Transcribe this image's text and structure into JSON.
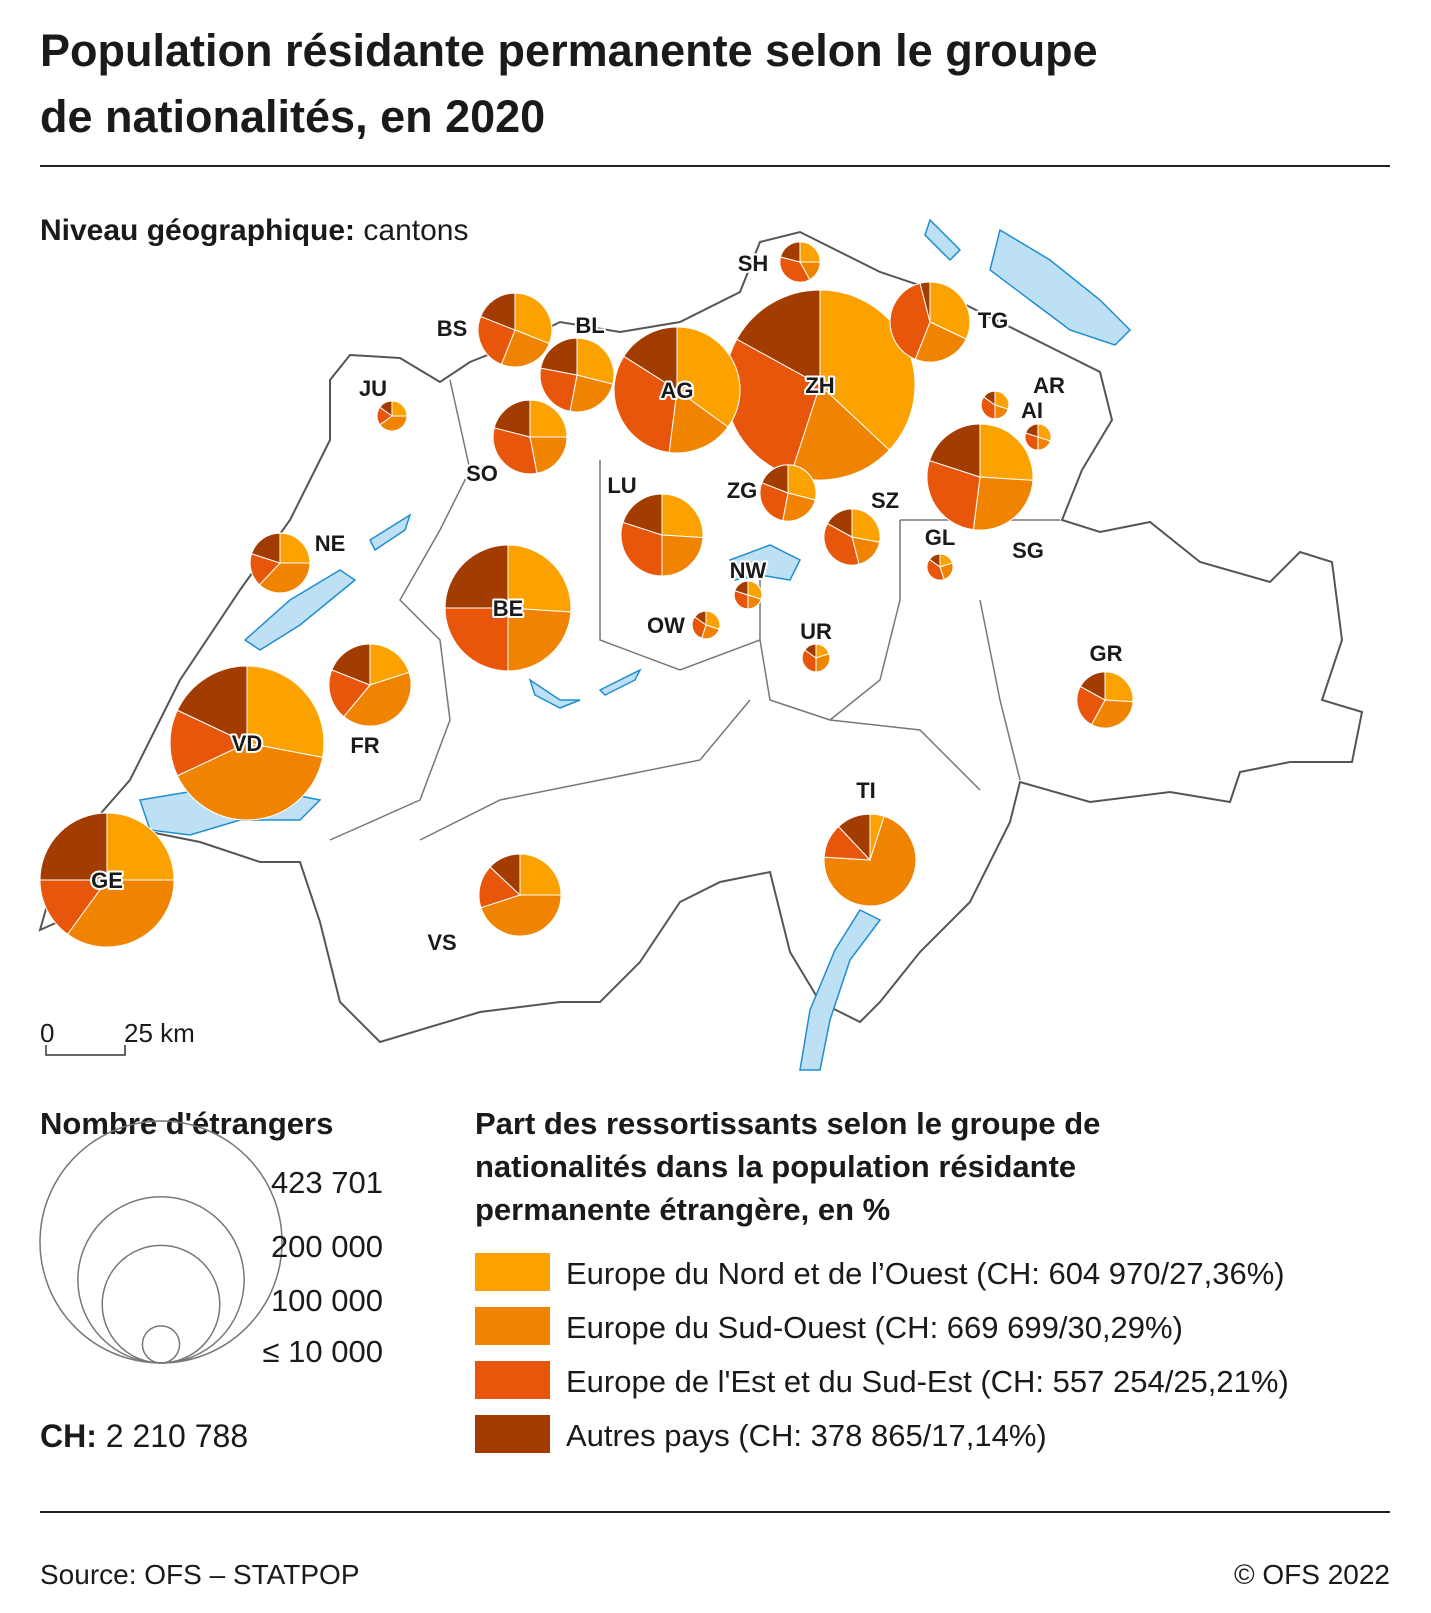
{
  "title": "Population résidante permanente selon le groupe de nationalités, en 2020",
  "geo_level": {
    "label": "Niveau géographique:",
    "value": "cantons"
  },
  "chart_data": {
    "type": "pie-map",
    "groups": [
      {
        "name": "Europe du Nord et de l’Ouest (CH: 604 970/27,36%)",
        "color": "#fba200"
      },
      {
        "name": "Europe du Sud-Ouest (CH: 669 699/30,29%)",
        "color": "#f08300"
      },
      {
        "name": "Europe de l'Est et du Sud-Est (CH: 557 254/25,21%)",
        "color": "#e8560c"
      },
      {
        "name": "Autres pays (CH: 378 865/17,14%)",
        "color": "#a33c00"
      }
    ],
    "color_legend_title": "Part des ressortissants selon le groupe de nationalités dans la population résidante permanente étrangère, en %",
    "cantons": [
      {
        "label": "ZH",
        "total": 423701,
        "values": [
          37,
          18,
          28,
          17
        ]
      },
      {
        "label": "GE",
        "total": 211000,
        "values": [
          25,
          35,
          15,
          25
        ]
      },
      {
        "label": "VD",
        "total": 278000,
        "values": [
          28,
          40,
          14,
          18
        ]
      },
      {
        "label": "BE",
        "total": 186000,
        "values": [
          26,
          24,
          25,
          25
        ]
      },
      {
        "label": "AG",
        "total": 186000,
        "values": [
          35,
          17,
          32,
          16
        ]
      },
      {
        "label": "SG",
        "total": 132000,
        "values": [
          26,
          26,
          28,
          20
        ]
      },
      {
        "label": "TI",
        "total": 99000,
        "values": [
          5,
          71,
          12,
          12
        ]
      },
      {
        "label": "LU",
        "total": 79000,
        "values": [
          26,
          24,
          30,
          20
        ]
      },
      {
        "label": "FR",
        "total": 79000,
        "values": [
          20,
          41,
          20,
          19
        ]
      },
      {
        "label": "VS",
        "total": 79000,
        "values": [
          25,
          45,
          17,
          13
        ]
      },
      {
        "label": "BS",
        "total": 64000,
        "values": [
          31,
          25,
          25,
          19
        ]
      },
      {
        "label": "BL",
        "total": 64000,
        "values": [
          29,
          24,
          25,
          22
        ]
      },
      {
        "label": "SO",
        "total": 64000,
        "values": [
          25,
          22,
          32,
          21
        ]
      },
      {
        "label": "TG",
        "total": 75000,
        "values": [
          32,
          24,
          40,
          4
        ]
      },
      {
        "label": "NE",
        "total": 42000,
        "values": [
          25,
          37,
          18,
          20
        ]
      },
      {
        "label": "GR",
        "total": 37000,
        "values": [
          26,
          32,
          25,
          17
        ]
      },
      {
        "label": "ZG",
        "total": 37000,
        "values": [
          29,
          24,
          28,
          19
        ]
      },
      {
        "label": "SZ",
        "total": 37000,
        "values": [
          28,
          18,
          37,
          17
        ]
      },
      {
        "label": "SH",
        "total": 19000,
        "values": [
          25,
          17,
          37,
          21
        ]
      },
      {
        "label": "JU",
        "total": 10500,
        "values": [
          25,
          40,
          20,
          15
        ]
      },
      {
        "label": "AR",
        "total": 9000,
        "values": [
          30,
          20,
          35,
          15
        ]
      },
      {
        "label": "AI",
        "total": 8000,
        "values": [
          30,
          20,
          30,
          20
        ]
      },
      {
        "label": "GL",
        "total": 8000,
        "values": [
          20,
          25,
          40,
          15
        ]
      },
      {
        "label": "NW",
        "total": 9000,
        "values": [
          30,
          20,
          30,
          20
        ]
      },
      {
        "label": "OW",
        "total": 9000,
        "values": [
          30,
          25,
          30,
          15
        ]
      },
      {
        "label": "UR",
        "total": 9000,
        "values": [
          20,
          30,
          35,
          15
        ]
      }
    ],
    "size_legend": {
      "title": "Nombre d'étrangers",
      "ticks": [
        {
          "value": 423701,
          "label": "423 701"
        },
        {
          "value": 200000,
          "label": "200 000"
        },
        {
          "value": 100000,
          "label": "100 000"
        },
        {
          "value": 10000,
          "label": "≤ 10 000"
        }
      ]
    },
    "total": {
      "label": "CH:",
      "value": "2 210 788"
    }
  },
  "scale_bar": {
    "start": "0",
    "end": "25 km"
  },
  "source": "Source: OFS – STATPOP",
  "copyright": "© OFS 2022"
}
